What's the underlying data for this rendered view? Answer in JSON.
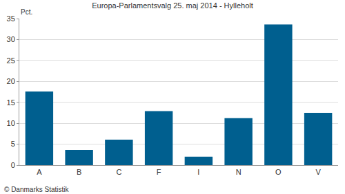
{
  "chart_data": {
    "type": "bar",
    "title": "Europa-Parlamentsvalg 25. maj 2014 - Hylleholt",
    "ylabel": "Pct.",
    "annotations": [
      "© Danmarks Statistik"
    ],
    "categories": [
      "A",
      "B",
      "C",
      "F",
      "I",
      "N",
      "O",
      "V"
    ],
    "values": [
      17.6,
      3.6,
      6.1,
      12.9,
      2.0,
      11.2,
      33.6,
      12.5
    ],
    "color": "#005f8f",
    "ylim": [
      0,
      35
    ],
    "yticks": [
      0,
      5,
      10,
      15,
      20,
      25,
      30,
      35
    ],
    "grid": true
  }
}
